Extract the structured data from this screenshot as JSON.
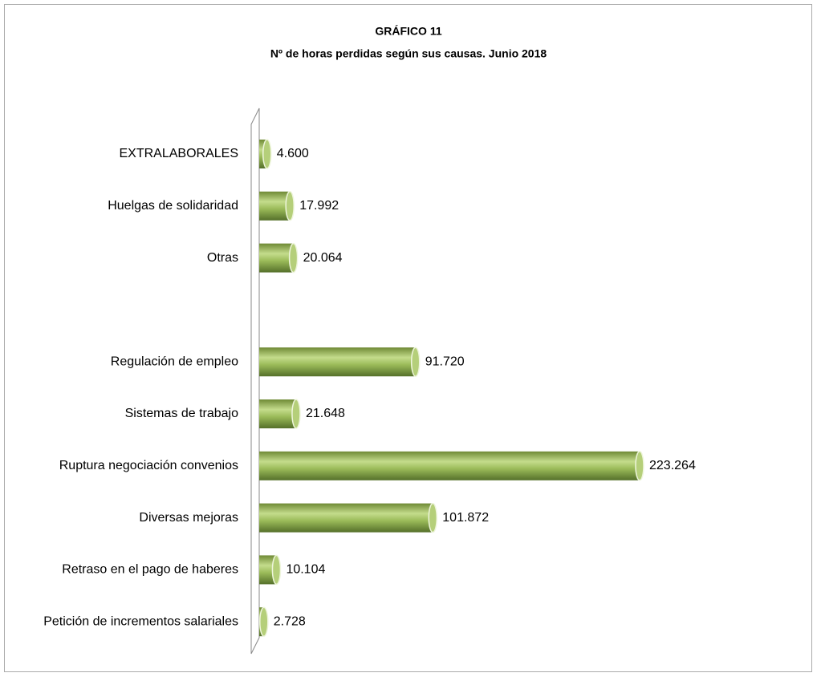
{
  "chart_data": {
    "type": "barh",
    "title": "GRÁFICO 11",
    "subtitle": "Nº de horas perdidas según sus causas. Junio 2018",
    "categories": [
      "EXTRALABORALES",
      "Huelgas de solidaridad",
      "Otras",
      null,
      "Regulación de empleo",
      "Sistemas de trabajo",
      "Ruptura negociación convenios",
      "Diversas mejoras ",
      "Retraso en el pago de haberes",
      "Petición de incrementos salariales"
    ],
    "values": [
      4600,
      17992,
      20064,
      null,
      91720,
      21648,
      223264,
      101872,
      10104,
      2728
    ],
    "value_labels": [
      "4.600",
      "17.992",
      "20.064",
      null,
      "91.720",
      "21.648",
      "223.264",
      "101.872",
      "10.104",
      "2.728"
    ],
    "color": "#9bbb59"
  }
}
